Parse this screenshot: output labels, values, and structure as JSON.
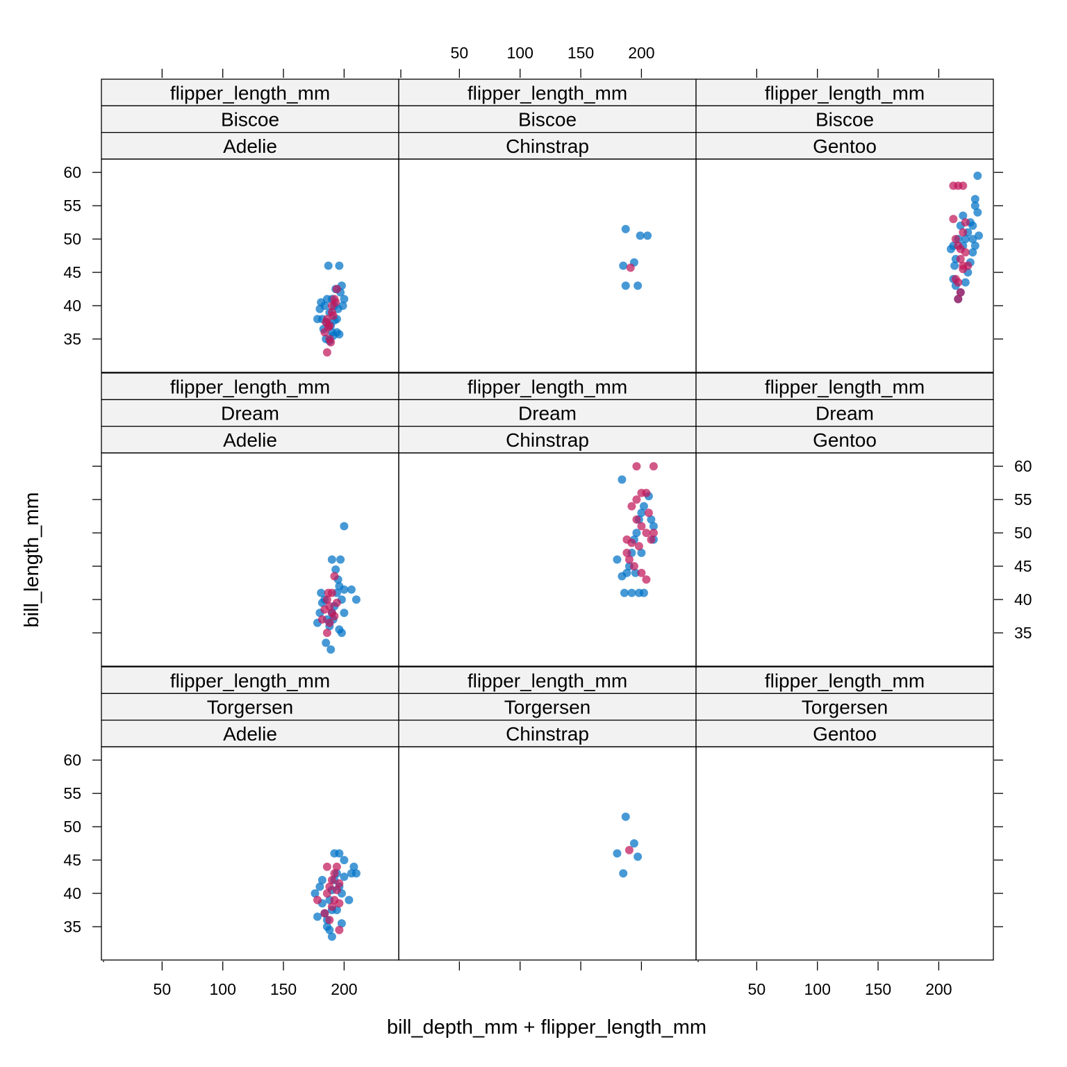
{
  "chart_data": {
    "type": "scatter",
    "xlabel": "bill_depth_mm + flipper_length_mm",
    "ylabel": "bill_length_mm",
    "xlim": [
      0,
      245
    ],
    "ylim": [
      30,
      62
    ],
    "x_ticks": [
      50,
      100,
      150,
      200
    ],
    "y_ticks": [
      35,
      40,
      45,
      50,
      55,
      60
    ],
    "x_tick_labels": [
      "50",
      "100",
      "150",
      "200"
    ],
    "y_tick_labels": [
      "35",
      "40",
      "45",
      "50",
      "55",
      "60"
    ],
    "strip_variable": "flipper_length_mm",
    "grid": false,
    "legend": "none",
    "colors": {
      "bill_depth_mm": "#0072c6",
      "flipper_length_mm": "#c0185a",
      "strip_bg": "#f2f2f2"
    },
    "series": [
      {
        "key": "bill_depth_mm",
        "color": "#0072c6"
      },
      {
        "key": "flipper_length_mm",
        "color": "#c0185a"
      }
    ],
    "panels": [
      {
        "island": "Biscoe",
        "species": "Adelie",
        "points": {
          "bill_depth_mm": [
            [
              182,
              38
            ],
            [
              184,
              40
            ],
            [
              186,
              37.5
            ],
            [
              188,
              39
            ],
            [
              190,
              36
            ],
            [
              190,
              41
            ],
            [
              192,
              40
            ],
            [
              194,
              38
            ],
            [
              185,
              35
            ],
            [
              188,
              34.7
            ],
            [
              191,
              35.5
            ],
            [
              195,
              39.5
            ],
            [
              197,
              42
            ],
            [
              198,
              43
            ],
            [
              200,
              41
            ],
            [
              193,
              42.5
            ],
            [
              187,
              46
            ],
            [
              196,
              46
            ],
            [
              178,
              38
            ],
            [
              181,
              40.5
            ],
            [
              183,
              36.5
            ],
            [
              189,
              37
            ],
            [
              192,
              37.8
            ],
            [
              194,
              36
            ],
            [
              196,
              35.7
            ],
            [
              186,
              41
            ],
            [
              180,
              39.5
            ],
            [
              199,
              40
            ]
          ],
          "flipper_length_mm": [
            [
              184,
              36
            ],
            [
              186,
              38
            ],
            [
              188,
              37
            ],
            [
              190,
              40
            ],
            [
              192,
              41
            ],
            [
              194,
              42.5
            ],
            [
              188,
              35
            ],
            [
              186,
              33
            ],
            [
              190,
              39
            ],
            [
              185,
              37.5
            ],
            [
              189,
              34.5
            ],
            [
              193,
              40.5
            ],
            [
              191,
              38.5
            ],
            [
              187,
              36.8
            ]
          ]
        }
      },
      {
        "island": "Biscoe",
        "species": "Chinstrap",
        "points": {
          "bill_depth_mm": [
            [
              185,
              46
            ],
            [
              194,
              46.5
            ],
            [
              187,
              43
            ],
            [
              197,
              43
            ],
            [
              187,
              51.5
            ],
            [
              199,
              50.5
            ],
            [
              205,
              50.5
            ]
          ],
          "flipper_length_mm": [
            [
              191,
              45.7
            ]
          ]
        }
      },
      {
        "island": "Biscoe",
        "species": "Gentoo",
        "points": {
          "bill_depth_mm": [
            [
              210,
              48.5
            ],
            [
              212,
              44
            ],
            [
              213,
              46
            ],
            [
              214,
              47
            ],
            [
              216,
              50
            ],
            [
              218,
              52
            ],
            [
              220,
              49
            ],
            [
              222,
              50
            ],
            [
              224,
              51
            ],
            [
              226,
              52.5
            ],
            [
              228,
              50
            ],
            [
              230,
              55
            ],
            [
              232,
              59.5
            ],
            [
              232,
              54
            ],
            [
              230,
              56
            ],
            [
              228,
              48
            ],
            [
              226,
              46.5
            ],
            [
              224,
              45
            ],
            [
              222,
              43.5
            ],
            [
              218,
              42
            ],
            [
              216,
              41
            ],
            [
              214,
              43
            ],
            [
              220,
              53.5
            ],
            [
              212,
              49
            ],
            [
              230,
              49
            ],
            [
              228,
              52
            ],
            [
              233,
              50.5
            ]
          ],
          "flipper_length_mm": [
            [
              212,
              58
            ],
            [
              216,
              58
            ],
            [
              220,
              58
            ],
            [
              212,
              53
            ],
            [
              214,
              50
            ],
            [
              216,
              49
            ],
            [
              218,
              47
            ],
            [
              220,
              45.5
            ],
            [
              222,
              48
            ],
            [
              224,
              46
            ],
            [
              214,
              44
            ],
            [
              216,
              43.5
            ],
            [
              218,
              42
            ],
            [
              220,
              51
            ],
            [
              222,
              52.5
            ],
            [
              216,
              41
            ],
            [
              218,
              48.5
            ],
            [
              220,
              46
            ]
          ]
        }
      },
      {
        "island": "Dream",
        "species": "Adelie",
        "points": {
          "bill_depth_mm": [
            [
              178,
              36.5
            ],
            [
              180,
              38
            ],
            [
              182,
              39.5
            ],
            [
              184,
              40
            ],
            [
              186,
              37
            ],
            [
              188,
              36
            ],
            [
              190,
              38
            ],
            [
              192,
              39
            ],
            [
              194,
              41
            ],
            [
              196,
              42
            ],
            [
              198,
              40
            ],
            [
              200,
              38
            ],
            [
              200,
              41.5
            ],
            [
              195,
              43
            ],
            [
              193,
              44.5
            ],
            [
              190,
              46
            ],
            [
              197,
              46
            ],
            [
              200,
              51
            ],
            [
              206,
              41.5
            ],
            [
              210,
              40
            ],
            [
              185,
              33.5
            ],
            [
              189,
              32.5
            ],
            [
              196,
              35.5
            ],
            [
              198,
              35
            ],
            [
              191,
              37
            ],
            [
              181,
              41
            ]
          ],
          "flipper_length_mm": [
            [
              182,
              37
            ],
            [
              184,
              38.5
            ],
            [
              186,
              40
            ],
            [
              188,
              39
            ],
            [
              190,
              41
            ],
            [
              192,
              43.5
            ],
            [
              186,
              35
            ],
            [
              188,
              36.5
            ],
            [
              190,
              38
            ],
            [
              194,
              39.5
            ],
            [
              192,
              37.5
            ],
            [
              187,
              41
            ]
          ]
        }
      },
      {
        "island": "Dream",
        "species": "Chinstrap",
        "points": {
          "bill_depth_mm": [
            [
              184,
              58
            ],
            [
              180,
              46
            ],
            [
              184,
              43.5
            ],
            [
              186,
              41
            ],
            [
              188,
              44
            ],
            [
              190,
              45
            ],
            [
              192,
              47
            ],
            [
              194,
              49
            ],
            [
              196,
              50
            ],
            [
              198,
              52
            ],
            [
              200,
              53
            ],
            [
              202,
              54
            ],
            [
              206,
              55.5
            ],
            [
              208,
              52
            ],
            [
              210,
              51
            ],
            [
              210,
              49
            ],
            [
              198,
              41
            ],
            [
              202,
              41
            ],
            [
              192,
              41
            ],
            [
              195,
              44
            ],
            [
              200,
              47
            ]
          ],
          "flipper_length_mm": [
            [
              196,
              60
            ],
            [
              210,
              60
            ],
            [
              196,
              55
            ],
            [
              200,
              56
            ],
            [
              204,
              56
            ],
            [
              192,
              54
            ],
            [
              196,
              52
            ],
            [
              200,
              51
            ],
            [
              204,
              50
            ],
            [
              208,
              49
            ],
            [
              192,
              48.5
            ],
            [
              188,
              47
            ],
            [
              190,
              46
            ],
            [
              194,
              45
            ],
            [
              200,
              44
            ],
            [
              204,
              43
            ],
            [
              210,
              50
            ],
            [
              206,
              53
            ],
            [
              188,
              49
            ],
            [
              198,
              48
            ]
          ]
        }
      },
      {
        "island": "Dream",
        "species": "Gentoo",
        "points": {
          "bill_depth_mm": [],
          "flipper_length_mm": []
        }
      },
      {
        "island": "Torgersen",
        "species": "Adelie",
        "points": {
          "bill_depth_mm": [
            [
              176,
              40
            ],
            [
              180,
              41
            ],
            [
              182,
              38.5
            ],
            [
              184,
              37
            ],
            [
              186,
              36
            ],
            [
              188,
              39
            ],
            [
              190,
              40.5
            ],
            [
              192,
              42
            ],
            [
              194,
              43
            ],
            [
              196,
              41
            ],
            [
              198,
              40
            ],
            [
              200,
              42.5
            ],
            [
              200,
              45
            ],
            [
              196,
              46
            ],
            [
              192,
              46
            ],
            [
              188,
              34.5
            ],
            [
              190,
              33.5
            ],
            [
              186,
              35
            ],
            [
              194,
              37.5
            ],
            [
              198,
              35.5
            ],
            [
              204,
              39
            ],
            [
              206,
              43
            ],
            [
              208,
              44
            ],
            [
              210,
              43
            ],
            [
              178,
              36.5
            ],
            [
              182,
              42
            ],
            [
              190,
              37.5
            ]
          ],
          "flipper_length_mm": [
            [
              178,
              39
            ],
            [
              184,
              37
            ],
            [
              186,
              40
            ],
            [
              188,
              41
            ],
            [
              190,
              42
            ],
            [
              192,
              43
            ],
            [
              194,
              44
            ],
            [
              196,
              41.5
            ],
            [
              188,
              36
            ],
            [
              190,
              38
            ],
            [
              192,
              39
            ],
            [
              196,
              34.5
            ],
            [
              186,
              44
            ],
            [
              194,
              40.5
            ],
            [
              196,
              38.5
            ]
          ]
        }
      },
      {
        "island": "Torgersen",
        "species": "Chinstrap",
        "points": {
          "bill_depth_mm": [
            [
              180,
              46
            ],
            [
              185,
              43
            ],
            [
              187,
              51.5
            ],
            [
              194,
              47.5
            ],
            [
              197,
              45.5
            ]
          ],
          "flipper_length_mm": [
            [
              190,
              46.5
            ]
          ]
        }
      },
      {
        "island": "Torgersen",
        "species": "Gentoo",
        "points": {
          "bill_depth_mm": [],
          "flipper_length_mm": []
        }
      }
    ]
  }
}
